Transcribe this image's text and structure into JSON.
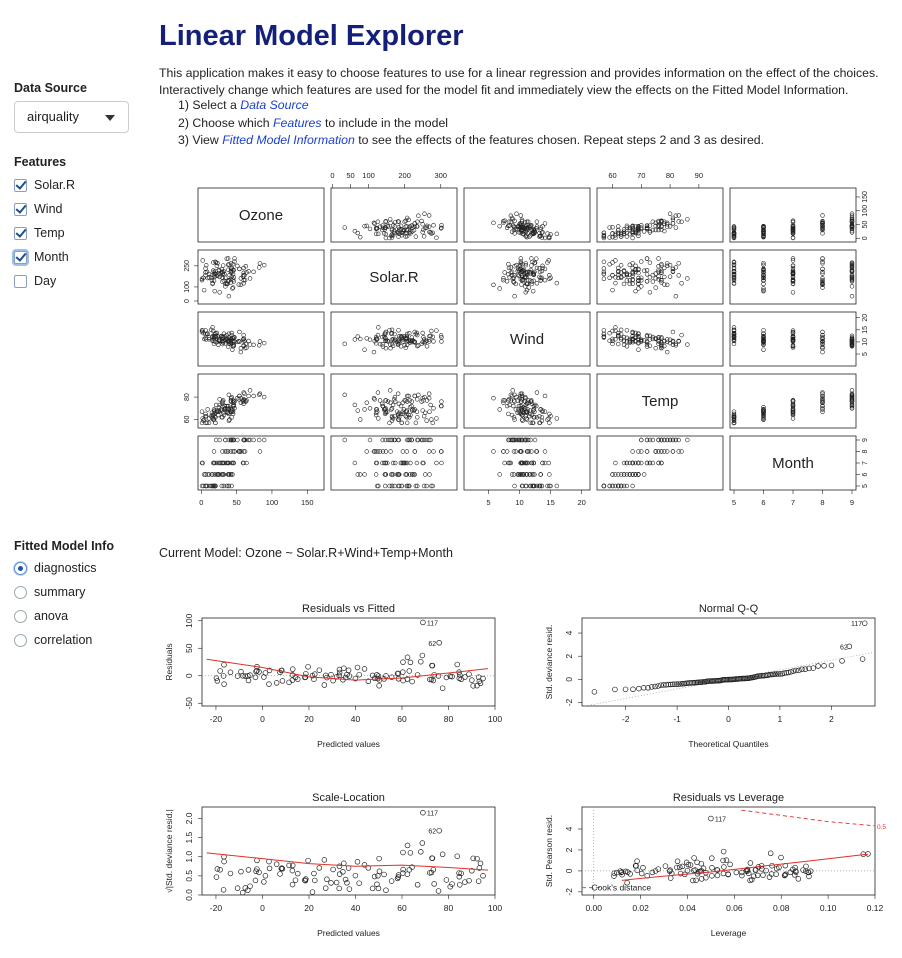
{
  "sidebar": {
    "data_source_label": "Data Source",
    "data_source_value": "airquality",
    "features_label": "Features",
    "features": [
      {
        "label": "Solar.R",
        "checked": true
      },
      {
        "label": "Wind",
        "checked": true
      },
      {
        "label": "Temp",
        "checked": true
      },
      {
        "label": "Month",
        "checked": true
      },
      {
        "label": "Day",
        "checked": false
      }
    ],
    "fitted_label": "Fitted Model Info",
    "fitted_options": [
      {
        "label": "diagnostics",
        "selected": true
      },
      {
        "label": "summary",
        "selected": false
      },
      {
        "label": "anova",
        "selected": false
      },
      {
        "label": "correlation",
        "selected": false
      }
    ]
  },
  "header": {
    "title": "Linear Model Explorer",
    "desc": "This application makes it easy to choose features to use for a linear regression and provides information on the effect of the choices. Interactively change which features are used for the model fit and immediately view the effects on the Fitted Model Information.",
    "steps": [
      {
        "prefix": "1) Select a ",
        "link": "Data Source",
        "suffix": ""
      },
      {
        "prefix": "2) Choose which ",
        "link": "Features",
        "suffix": " to include in the model"
      },
      {
        "prefix": "3) View ",
        "link": "Fitted Model Information",
        "suffix": " to see the effects of the features chosen. Repeat steps 2 and 3 as desired."
      }
    ]
  },
  "model_label": "Current Model: Ozone ~ Solar.R+Wind+Temp+Month",
  "colors": {
    "title": "#141f7a",
    "link": "#1a3fcf",
    "trend": "#e0302a",
    "points": "#222222"
  },
  "chart_data": [
    {
      "type": "scatter",
      "title": "",
      "variables": [
        "Ozone",
        "Solar.R",
        "Wind",
        "Temp",
        "Month"
      ],
      "ranges": {
        "Ozone": [
          1,
          168
        ],
        "Solar.R": [
          7,
          334
        ],
        "Wind": [
          1.7,
          20.7
        ],
        "Temp": [
          56,
          97
        ],
        "Month": [
          5,
          9
        ]
      },
      "ticks": {
        "Ozone": [
          "0",
          "50",
          "100",
          "150"
        ],
        "Solar.R": [
          "0",
          "50",
          "100",
          "200",
          "300"
        ],
        "Wind": [
          "5",
          "10",
          "15",
          "20"
        ],
        "Temp": [
          "60",
          "70",
          "80",
          "90"
        ],
        "Month": [
          "5",
          "6",
          "7",
          "8",
          "9"
        ]
      },
      "left_ticks": {
        "Solar.R": [
          "0",
          "100",
          "250"
        ],
        "Temp": [
          "60",
          "80"
        ]
      },
      "right_ticks": {
        "Ozone": [
          "0",
          "50",
          "100",
          "150"
        ],
        "Wind": [
          "5",
          "10",
          "15",
          "20"
        ],
        "Month": [
          "5",
          "6",
          "7",
          "8",
          "9"
        ]
      }
    },
    {
      "type": "scatter",
      "title": "Residuals vs Fitted",
      "xlabel": "Predicted values",
      "ylabel": "Residuals",
      "xlim": [
        -26,
        100
      ],
      "ylim": [
        -55,
        105
      ],
      "xticks": [
        "-20",
        "0",
        "20",
        "40",
        "60",
        "80",
        "100"
      ],
      "yticks": [
        "-50",
        "0",
        "50",
        "100"
      ],
      "annotations": [
        "117",
        "62"
      ],
      "ref_line": 0,
      "trend": [
        [
          -24,
          30
        ],
        [
          0,
          15
        ],
        [
          20,
          -2
        ],
        [
          40,
          -8
        ],
        [
          60,
          -4
        ],
        [
          80,
          5
        ],
        [
          97,
          13
        ]
      ]
    },
    {
      "type": "scatter",
      "title": "Normal Q-Q",
      "xlabel": "Theoretical Quantiles",
      "ylabel": "Std. deviance resid.",
      "xlim": [
        -2.85,
        2.85
      ],
      "ylim": [
        -2.3,
        5.3
      ],
      "xticks": [
        "-2",
        "-1",
        "0",
        "1",
        "2"
      ],
      "yticks": [
        "-2",
        "0",
        "2",
        "4"
      ],
      "annotations": [
        "117",
        "62"
      ],
      "ref_line": [
        [
          -2.85,
          -2.35
        ],
        [
          2.85,
          2.35
        ]
      ]
    },
    {
      "type": "scatter",
      "title": "Scale-Location",
      "xlabel": "Predicted values",
      "ylabel": "√|Std. deviance resid.|",
      "xlim": [
        -26,
        100
      ],
      "ylim": [
        0,
        2.3
      ],
      "xticks": [
        "-20",
        "0",
        "20",
        "40",
        "60",
        "80",
        "100"
      ],
      "yticks": [
        "0.0",
        "0.5",
        "1.0",
        "1.5",
        "2.0"
      ],
      "annotations": [
        "117",
        "62"
      ],
      "trend": [
        [
          -24,
          1.1
        ],
        [
          0,
          0.95
        ],
        [
          20,
          0.82
        ],
        [
          40,
          0.75
        ],
        [
          60,
          0.78
        ],
        [
          80,
          0.72
        ],
        [
          97,
          0.65
        ]
      ]
    },
    {
      "type": "scatter",
      "title": "Residuals vs Leverage",
      "xlabel": "Leverage",
      "ylabel": "Std. Pearson resid.",
      "xlim": [
        -0.005,
        0.12
      ],
      "ylim": [
        -2.3,
        6.1
      ],
      "xticks": [
        "0.00",
        "0.02",
        "0.04",
        "0.06",
        "0.08",
        "0.10",
        "0.12"
      ],
      "yticks": [
        "-2",
        "0",
        "2",
        "4"
      ],
      "annotations": [
        "117",
        "0.5",
        "Cook's distance"
      ],
      "trend": [
        [
          0.012,
          -0.9
        ],
        [
          0.03,
          -0.5
        ],
        [
          0.05,
          -0.1
        ],
        [
          0.07,
          0.4
        ],
        [
          0.09,
          0.9
        ],
        [
          0.117,
          1.6
        ]
      ],
      "cook_line": [
        [
          0.063,
          5.8
        ],
        [
          0.08,
          5.3
        ],
        [
          0.1,
          4.7
        ],
        [
          0.12,
          4.3
        ]
      ]
    }
  ]
}
